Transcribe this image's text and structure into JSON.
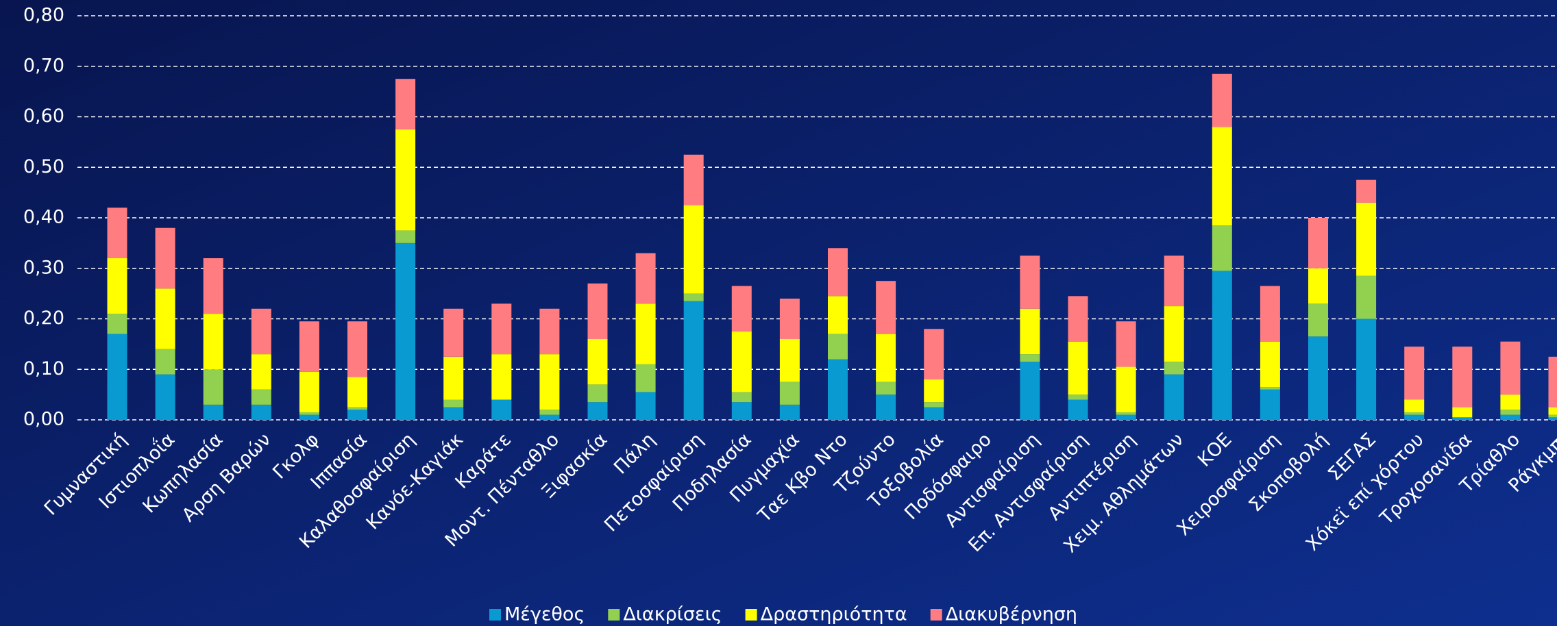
{
  "chart_data": {
    "type": "stacked_bar",
    "categories": [
      "Γυμναστική",
      "Ιστιοπλοΐα",
      "Κωπηλασία",
      "Αρση Βαρών",
      "Γκολφ",
      "Ιππασία",
      "Καλαθοσφαίριση",
      "Κανόε-Καγιάκ",
      "Καράτε",
      "Μοντ. Πένταθλο",
      "Ξιφασκία",
      "Πάλη",
      "Πετοσφαίριση",
      "Ποδηλασία",
      "Πυγμαχία",
      "Ταε Κβο Ντο",
      "Τζούντο",
      "Τοξοβολία",
      "Ποδόσφαιρο",
      "Αντισφαίριση",
      "Επ. Αντισφαίριση",
      "Αντιπτέριση",
      "Χειμ. Αθλημάτων",
      "ΚΟΕ",
      "Χειροσφαίριση",
      "Σκοποβολή",
      "ΣΕΓΑΣ",
      "Χόκεϊ επί χόρτου",
      "Τροχοσανίδα",
      "Τρίαθλο",
      "Ράγκμπι"
    ],
    "series": [
      {
        "name": "Μέγεθος",
        "color": "#0a9ad2",
        "values": [
          0.17,
          0.09,
          0.03,
          0.03,
          0.01,
          0.02,
          0.35,
          0.025,
          0.04,
          0.01,
          0.035,
          0.055,
          0.235,
          0.035,
          0.03,
          0.12,
          0.05,
          0.025,
          0,
          0.115,
          0.04,
          0.01,
          0.09,
          0.295,
          0.06,
          0.165,
          0.2,
          0.01,
          0.005,
          0.01,
          0.005
        ]
      },
      {
        "name": "Διακρίσεις",
        "color": "#92d050",
        "values": [
          0.04,
          0.05,
          0.07,
          0.03,
          0.005,
          0.005,
          0.025,
          0.015,
          0,
          0.01,
          0.035,
          0.055,
          0.015,
          0.02,
          0.045,
          0.05,
          0.025,
          0.01,
          0,
          0.015,
          0.01,
          0.005,
          0.025,
          0.09,
          0.005,
          0.065,
          0.085,
          0.005,
          0,
          0.01,
          0.005
        ]
      },
      {
        "name": "Δραστηριότητα",
        "color": "#ffff00",
        "values": [
          0.11,
          0.12,
          0.11,
          0.07,
          0.08,
          0.06,
          0.2,
          0.085,
          0.09,
          0.11,
          0.09,
          0.12,
          0.175,
          0.12,
          0.085,
          0.075,
          0.095,
          0.045,
          0,
          0.09,
          0.105,
          0.09,
          0.11,
          0.195,
          0.09,
          0.07,
          0.145,
          0.025,
          0.02,
          0.03,
          0.015
        ]
      },
      {
        "name": "Διακυβέρνηση",
        "color": "#ff7c80",
        "values": [
          0.1,
          0.12,
          0.11,
          0.09,
          0.1,
          0.11,
          0.1,
          0.095,
          0.1,
          0.09,
          0.11,
          0.1,
          0.1,
          0.09,
          0.08,
          0.095,
          0.105,
          0.1,
          0,
          0.105,
          0.09,
          0.09,
          0.1,
          0.105,
          0.11,
          0.1,
          0.045,
          0.105,
          0.12,
          0.105,
          0.1
        ]
      }
    ],
    "ylim": [
      0,
      0.8
    ],
    "yticks": [
      {
        "value": 0,
        "label": "0,00"
      },
      {
        "value": 0.1,
        "label": "0,10"
      },
      {
        "value": 0.2,
        "label": "0,20"
      },
      {
        "value": 0.3,
        "label": "0,30"
      },
      {
        "value": 0.4,
        "label": "0,40"
      },
      {
        "value": 0.5,
        "label": "0,50"
      },
      {
        "value": 0.6,
        "label": "0,60"
      },
      {
        "value": 0.7,
        "label": "0,70"
      },
      {
        "value": 0.8,
        "label": "0,80"
      }
    ],
    "grid": true,
    "legend": "bottom"
  }
}
